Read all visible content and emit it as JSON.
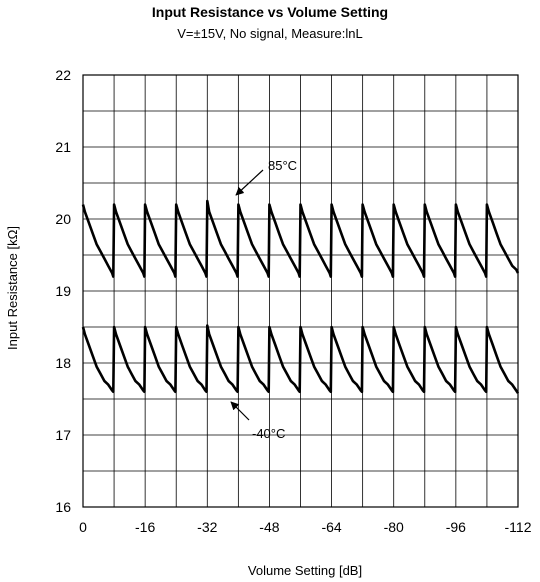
{
  "chart_data": {
    "type": "line",
    "title": "Input Resistance vs Volume Setting",
    "subtitle": "V=±15V, No signal,  Measure:lnL",
    "xlabel": "Volume Setting [dB]",
    "ylabel": "Input Resistance [kΩ]",
    "xlim": [
      0,
      -112
    ],
    "ylim": [
      16,
      22
    ],
    "xticks": [
      "0",
      "-16",
      "-32",
      "-48",
      "-64",
      "-80",
      "-96",
      "-112"
    ],
    "yticks": [
      "16",
      "17",
      "18",
      "19",
      "20",
      "21",
      "22"
    ],
    "grid": true,
    "sawtooth_period_db": 8,
    "series": [
      {
        "name": "85°C",
        "x": [
          0,
          -0.5,
          -1.5,
          -2.5,
          -3.5,
          -4.5,
          -5.5,
          -6.5,
          -7.5,
          -7.8,
          -8,
          -8.5,
          -9.5,
          -10.5,
          -11.5,
          -12.5,
          -13.5,
          -14.5,
          -15.5,
          -15.8,
          -16,
          -16.5,
          -17.5,
          -18.5,
          -19.5,
          -20.5,
          -21.5,
          -22.5,
          -23.5,
          -23.8,
          -24,
          -24.5,
          -25.5,
          -26.5,
          -27.5,
          -28.5,
          -29.5,
          -30.5,
          -31.5,
          -31.8,
          -32,
          -32.5,
          -33.5,
          -34.5,
          -35.5,
          -36.5,
          -37.5,
          -38.5,
          -39.5,
          -39.8,
          -40,
          -40.5,
          -41.5,
          -42.5,
          -43.5,
          -44.5,
          -45.5,
          -46.5,
          -47.5,
          -47.8,
          -48,
          -48.5,
          -49.5,
          -50.5,
          -51.5,
          -52.5,
          -53.5,
          -54.5,
          -55.5,
          -55.8,
          -56,
          -56.5,
          -57.5,
          -58.5,
          -59.5,
          -60.5,
          -61.5,
          -62.5,
          -63.5,
          -63.8,
          -64,
          -64.5,
          -65.5,
          -66.5,
          -67.5,
          -68.5,
          -69.5,
          -70.5,
          -71.5,
          -71.8,
          -72,
          -72.5,
          -73.5,
          -74.5,
          -75.5,
          -76.5,
          -77.5,
          -78.5,
          -79.5,
          -79.8,
          -80,
          -80.5,
          -81.5,
          -82.5,
          -83.5,
          -84.5,
          -85.5,
          -86.5,
          -87.5,
          -87.8,
          -88,
          -88.5,
          -89.5,
          -90.5,
          -91.5,
          -92.5,
          -93.5,
          -94.5,
          -95.5,
          -95.8,
          -96,
          -96.5,
          -97.5,
          -98.5,
          -99.5,
          -100.5,
          -101.5,
          -102.5,
          -103.5,
          -103.8,
          -104,
          -104.5,
          -105.5,
          -106.5,
          -107.5,
          -108.5,
          -109.5,
          -110.5,
          -111.5,
          -112
        ],
        "y": [
          20.2,
          20.1,
          19.95,
          19.8,
          19.65,
          19.55,
          19.45,
          19.35,
          19.25,
          19.2,
          20.2,
          20.1,
          19.95,
          19.8,
          19.65,
          19.55,
          19.45,
          19.35,
          19.25,
          19.2,
          20.2,
          20.1,
          19.95,
          19.8,
          19.65,
          19.55,
          19.45,
          19.35,
          19.25,
          19.2,
          20.2,
          20.1,
          19.95,
          19.8,
          19.65,
          19.55,
          19.45,
          19.35,
          19.25,
          19.2,
          20.25,
          20.1,
          19.95,
          19.8,
          19.65,
          19.55,
          19.45,
          19.35,
          19.25,
          19.2,
          20.2,
          20.1,
          19.95,
          19.8,
          19.65,
          19.55,
          19.45,
          19.35,
          19.25,
          19.2,
          20.2,
          20.1,
          19.95,
          19.8,
          19.65,
          19.55,
          19.45,
          19.35,
          19.25,
          19.2,
          20.2,
          20.1,
          19.95,
          19.8,
          19.65,
          19.55,
          19.45,
          19.35,
          19.25,
          19.2,
          20.2,
          20.1,
          19.95,
          19.8,
          19.65,
          19.55,
          19.45,
          19.35,
          19.25,
          19.2,
          20.2,
          20.1,
          19.95,
          19.8,
          19.65,
          19.55,
          19.45,
          19.35,
          19.25,
          19.2,
          20.2,
          20.1,
          19.95,
          19.8,
          19.65,
          19.55,
          19.45,
          19.35,
          19.25,
          19.2,
          20.2,
          20.1,
          19.95,
          19.8,
          19.65,
          19.55,
          19.45,
          19.35,
          19.25,
          19.2,
          20.2,
          20.1,
          19.95,
          19.8,
          19.65,
          19.55,
          19.45,
          19.35,
          19.25,
          19.2,
          20.2,
          20.1,
          19.95,
          19.8,
          19.65,
          19.55,
          19.45,
          19.35,
          19.3,
          19.25
        ]
      },
      {
        "name": "-40°C",
        "x": [
          0,
          -0.5,
          -1.5,
          -2.5,
          -3.5,
          -4.5,
          -5.5,
          -6.5,
          -7.5,
          -7.8,
          -8,
          -8.5,
          -9.5,
          -10.5,
          -11.5,
          -12.5,
          -13.5,
          -14.5,
          -15.5,
          -15.8,
          -16,
          -16.5,
          -17.5,
          -18.5,
          -19.5,
          -20.5,
          -21.5,
          -22.5,
          -23.5,
          -23.8,
          -24,
          -24.5,
          -25.5,
          -26.5,
          -27.5,
          -28.5,
          -29.5,
          -30.5,
          -31.5,
          -31.8,
          -32,
          -32.5,
          -33.5,
          -34.5,
          -35.5,
          -36.5,
          -37.5,
          -38.5,
          -39.5,
          -39.8,
          -40,
          -40.5,
          -41.5,
          -42.5,
          -43.5,
          -44.5,
          -45.5,
          -46.5,
          -47.5,
          -47.8,
          -48,
          -48.5,
          -49.5,
          -50.5,
          -51.5,
          -52.5,
          -53.5,
          -54.5,
          -55.5,
          -55.8,
          -56,
          -56.5,
          -57.5,
          -58.5,
          -59.5,
          -60.5,
          -61.5,
          -62.5,
          -63.5,
          -63.8,
          -64,
          -64.5,
          -65.5,
          -66.5,
          -67.5,
          -68.5,
          -69.5,
          -70.5,
          -71.5,
          -71.8,
          -72,
          -72.5,
          -73.5,
          -74.5,
          -75.5,
          -76.5,
          -77.5,
          -78.5,
          -79.5,
          -79.8,
          -80,
          -80.5,
          -81.5,
          -82.5,
          -83.5,
          -84.5,
          -85.5,
          -86.5,
          -87.5,
          -87.8,
          -88,
          -88.5,
          -89.5,
          -90.5,
          -91.5,
          -92.5,
          -93.5,
          -94.5,
          -95.5,
          -95.8,
          -96,
          -96.5,
          -97.5,
          -98.5,
          -99.5,
          -100.5,
          -101.5,
          -102.5,
          -103.5,
          -103.8,
          -104,
          -104.5,
          -105.5,
          -106.5,
          -107.5,
          -108.5,
          -109.5,
          -110.5,
          -111.5,
          -112
        ],
        "y": [
          18.5,
          18.4,
          18.25,
          18.1,
          17.95,
          17.85,
          17.75,
          17.7,
          17.62,
          17.6,
          18.5,
          18.4,
          18.25,
          18.1,
          17.95,
          17.85,
          17.75,
          17.7,
          17.62,
          17.6,
          18.5,
          18.4,
          18.25,
          18.1,
          17.95,
          17.85,
          17.75,
          17.7,
          17.62,
          17.6,
          18.5,
          18.4,
          18.25,
          18.1,
          17.95,
          17.85,
          17.75,
          17.7,
          17.62,
          17.6,
          18.52,
          18.4,
          18.25,
          18.1,
          17.95,
          17.85,
          17.75,
          17.7,
          17.62,
          17.6,
          18.5,
          18.4,
          18.25,
          18.1,
          17.95,
          17.85,
          17.75,
          17.7,
          17.62,
          17.6,
          18.5,
          18.4,
          18.25,
          18.1,
          17.95,
          17.85,
          17.75,
          17.7,
          17.62,
          17.6,
          18.5,
          18.4,
          18.25,
          18.1,
          17.95,
          17.85,
          17.75,
          17.7,
          17.62,
          17.6,
          18.5,
          18.4,
          18.25,
          18.1,
          17.95,
          17.85,
          17.75,
          17.7,
          17.62,
          17.6,
          18.5,
          18.4,
          18.25,
          18.1,
          17.95,
          17.85,
          17.75,
          17.7,
          17.62,
          17.6,
          18.5,
          18.4,
          18.25,
          18.1,
          17.95,
          17.85,
          17.75,
          17.7,
          17.62,
          17.6,
          18.5,
          18.4,
          18.25,
          18.1,
          17.95,
          17.85,
          17.75,
          17.7,
          17.62,
          17.6,
          18.5,
          18.4,
          18.25,
          18.1,
          17.95,
          17.85,
          17.75,
          17.7,
          17.62,
          17.6,
          18.5,
          18.4,
          18.25,
          18.1,
          17.95,
          17.85,
          17.75,
          17.7,
          17.62,
          17.58
        ]
      }
    ],
    "annotations": [
      {
        "text": "85°C",
        "series": "85°C"
      },
      {
        "text": "-40°C",
        "series": "-40°C"
      }
    ],
    "colors": {
      "line": "#000000",
      "grid": "#000000",
      "background": "#ffffff"
    }
  }
}
